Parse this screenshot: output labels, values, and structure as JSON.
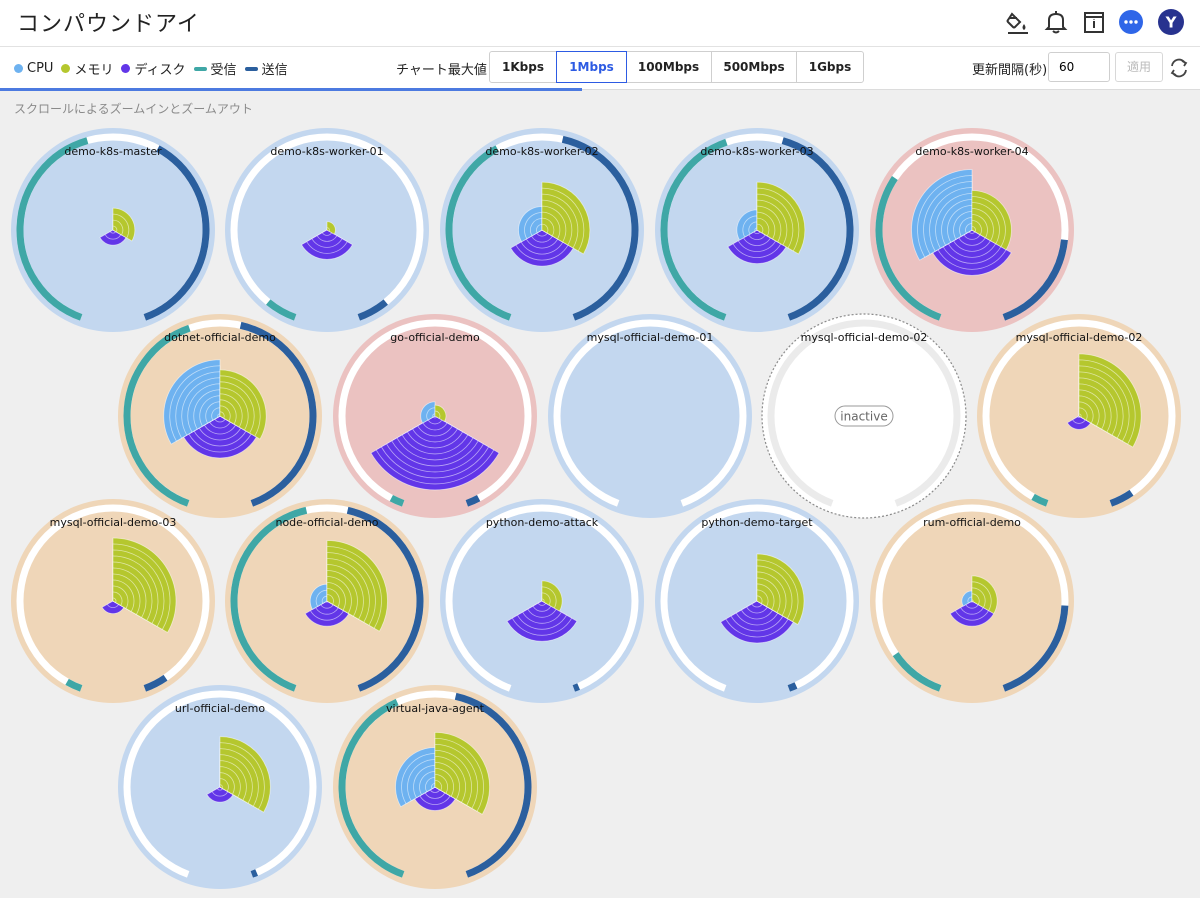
{
  "header": {
    "title": "コンパウンドアイ",
    "icons": [
      "paint-bucket-icon",
      "bell-icon",
      "info-panel-icon",
      "chat-icon"
    ],
    "avatar_letter": "Y"
  },
  "toolbar": {
    "legend": [
      {
        "label": "CPU",
        "color": "#6eb2f0",
        "shape": "dot"
      },
      {
        "label": "メモリ",
        "color": "#b5c72e",
        "shape": "dot"
      },
      {
        "label": "ディスク",
        "color": "#6236e8",
        "shape": "dot"
      },
      {
        "label": "受信",
        "color": "#3fa7a6",
        "shape": "bar"
      },
      {
        "label": "送信",
        "color": "#2b5f9e",
        "shape": "bar"
      }
    ],
    "chart_max_label": "チャート最大値",
    "chart_max_options": [
      "1Kbps",
      "1Mbps",
      "100Mbps",
      "500Mbps",
      "1Gbps"
    ],
    "chart_max_selected": "1Mbps",
    "refresh_label": "更新間隔(秒)",
    "refresh_value": "60",
    "apply_label": "適用",
    "progress_fraction": 0.485
  },
  "zoom_hint": "スクロールによるズームインとズームアウト",
  "colors": {
    "blue_bg": "#c3d7ef",
    "peach_bg": "#efd6b8",
    "red_bg": "#ebc2c1",
    "cpu": "#6eb2f0",
    "memory": "#b5c72e",
    "disk": "#6236e8",
    "recv": "#3fa7a6",
    "send": "#2b5f9e"
  },
  "chart_data": {
    "type": "radial-sector-grid",
    "note_units": "sector values are fractions of max radius; recv/send are fractions of half ring",
    "nodes": [
      {
        "name": "demo-k8s-master",
        "bg": "blue",
        "cpu": 0.0,
        "memory": 0.26,
        "disk": 0.18,
        "recv": 0.9,
        "send": 0.82
      },
      {
        "name": "demo-k8s-worker-01",
        "bg": "blue",
        "cpu": 0.0,
        "memory": 0.1,
        "disk": 0.35,
        "recv": 0.12,
        "send": 0.12
      },
      {
        "name": "demo-k8s-worker-02",
        "bg": "blue",
        "cpu": 0.28,
        "memory": 0.57,
        "disk": 0.43,
        "recv": 0.82,
        "send": 0.92
      },
      {
        "name": "demo-k8s-worker-03",
        "bg": "blue",
        "cpu": 0.24,
        "memory": 0.57,
        "disk": 0.4,
        "recv": 0.88,
        "send": 0.9
      },
      {
        "name": "demo-k8s-worker-04",
        "bg": "red",
        "cpu": 0.72,
        "memory": 0.47,
        "disk": 0.54,
        "recv": 0.65,
        "send": 0.4
      },
      {
        "name": "dotnet-official-demo",
        "bg": "peach",
        "cpu": 0.67,
        "memory": 0.55,
        "disk": 0.5,
        "recv": 0.88,
        "send": 0.92
      },
      {
        "name": "go-official-demo",
        "bg": "red",
        "cpu": 0.17,
        "memory": 0.13,
        "disk": 0.88,
        "recv": 0.05,
        "send": 0.05
      },
      {
        "name": "mysql-official-demo-01",
        "bg": "blue",
        "cpu": 0.0,
        "memory": 0.0,
        "disk": 0.0,
        "recv": 0.0,
        "send": 0.0
      },
      {
        "name": "mysql-official-demo-02",
        "bg": "inactive",
        "status": "inactive"
      },
      {
        "name": "mysql-official-demo-02",
        "bg": "peach",
        "cpu": 0.0,
        "memory": 0.74,
        "disk": 0.16,
        "recv": 0.06,
        "send": 0.09
      },
      {
        "name": "mysql-official-demo-03",
        "bg": "peach",
        "cpu": 0.0,
        "memory": 0.75,
        "disk": 0.15,
        "recv": 0.06,
        "send": 0.09
      },
      {
        "name": "node-official-demo",
        "bg": "peach",
        "cpu": 0.2,
        "memory": 0.72,
        "disk": 0.3,
        "recv": 0.92,
        "send": 0.92
      },
      {
        "name": "python-demo-attack",
        "bg": "blue",
        "cpu": 0.0,
        "memory": 0.24,
        "disk": 0.48,
        "recv": 0.0,
        "send": 0.02
      },
      {
        "name": "python-demo-target",
        "bg": "blue",
        "cpu": 0.0,
        "memory": 0.56,
        "disk": 0.5,
        "recv": 0.0,
        "send": 0.03
      },
      {
        "name": "rum-official-demo",
        "bg": "peach",
        "cpu": 0.12,
        "memory": 0.3,
        "disk": 0.3,
        "recv": 0.22,
        "send": 0.42
      },
      {
        "name": "url-official-demo",
        "bg": "blue",
        "cpu": 0.0,
        "memory": 0.6,
        "disk": 0.18,
        "recv": 0.0,
        "send": 0.02
      },
      {
        "name": "virtual-java-agent",
        "bg": "peach",
        "cpu": 0.47,
        "memory": 0.65,
        "disk": 0.28,
        "recv": 0.85,
        "send": 0.92
      }
    ]
  }
}
